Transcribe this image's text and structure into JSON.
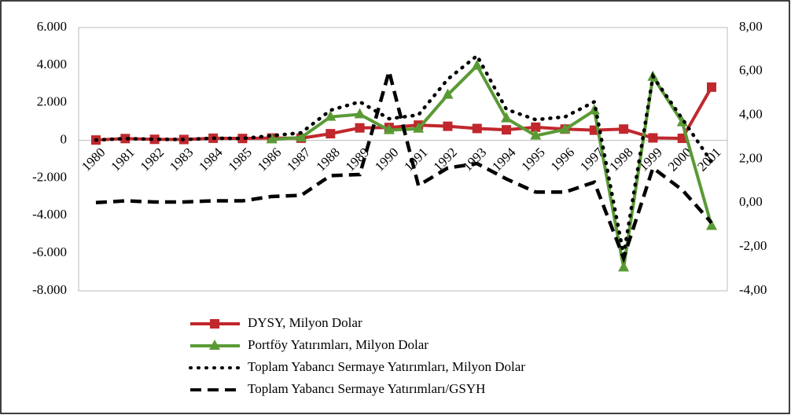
{
  "chart_data": {
    "type": "line",
    "categories": [
      "1980",
      "1981",
      "1982",
      "1983",
      "1984",
      "1985",
      "1986",
      "1987",
      "1988",
      "1989",
      "1990",
      "1991",
      "1992",
      "1993",
      "1994",
      "1995",
      "1996",
      "1997",
      "1998",
      "1999",
      "2000",
      "2001"
    ],
    "ylim": [
      -8000,
      6000
    ],
    "yticks": [
      {
        "value": -8000,
        "label": "-8.000"
      },
      {
        "value": -6000,
        "label": "-6.000"
      },
      {
        "value": -4000,
        "label": "-4.000"
      },
      {
        "value": -2000,
        "label": "-2.000"
      },
      0,
      {
        "value": 2000,
        "label": "2.000"
      },
      {
        "value": 4000,
        "label": "4.000"
      },
      {
        "value": 6000,
        "label": "6.000"
      }
    ],
    "y2lim": [
      -4,
      8
    ],
    "y2ticks": [
      {
        "value": -4,
        "label": "-4,00"
      },
      {
        "value": -2,
        "label": "-2,00"
      },
      {
        "value": 0,
        "label": "0,00"
      },
      {
        "value": 2,
        "label": "2,00"
      },
      {
        "value": 4,
        "label": "4,00"
      },
      {
        "value": 6,
        "label": "6,00"
      },
      {
        "value": 8,
        "label": "8,00"
      }
    ],
    "series": [
      {
        "name": "DYSY, Milyon Dolar",
        "color": "#c0282d",
        "marker": "square",
        "dash": "solid",
        "values": [
          18,
          95,
          55,
          46,
          113,
          100,
          125,
          115,
          354,
          663,
          684,
          810,
          750,
          630,
          560,
          700,
          600,
          540,
          600,
          130,
          110,
          2830
        ]
      },
      {
        "name": "Portföy Yatırımları, Milyon Dolar",
        "color": "#5a9a35",
        "marker": "triangle",
        "dash": "solid",
        "values": [
          null,
          null,
          null,
          null,
          null,
          null,
          50,
          150,
          1250,
          1380,
          540,
          620,
          2420,
          3970,
          1170,
          250,
          580,
          1590,
          -6760,
          3380,
          960,
          -4550
        ]
      },
      {
        "name": "Toplam Yabancı Sermaye Yatırımları, Milyon Dolar",
        "color": "#000000",
        "marker": "none",
        "dash": "dotted",
        "values": [
          18,
          95,
          55,
          46,
          113,
          100,
          250,
          400,
          1600,
          2050,
          1150,
          1350,
          3250,
          4500,
          1650,
          1100,
          1250,
          2050,
          -6100,
          3400,
          1150,
          -1150
        ]
      },
      {
        "name": "Toplam Yabancı Sermaye Yatırımları/GSYH",
        "color": "#000000",
        "marker": "none",
        "dash": "dashed",
        "axis": "y2",
        "values": [
          0.02,
          0.1,
          0.05,
          0.05,
          0.1,
          0.1,
          0.3,
          0.35,
          1.25,
          1.3,
          6.0,
          0.8,
          1.6,
          1.8,
          1.1,
          0.5,
          0.5,
          0.95,
          -2.5,
          1.6,
          0.6,
          -0.9
        ]
      }
    ]
  }
}
